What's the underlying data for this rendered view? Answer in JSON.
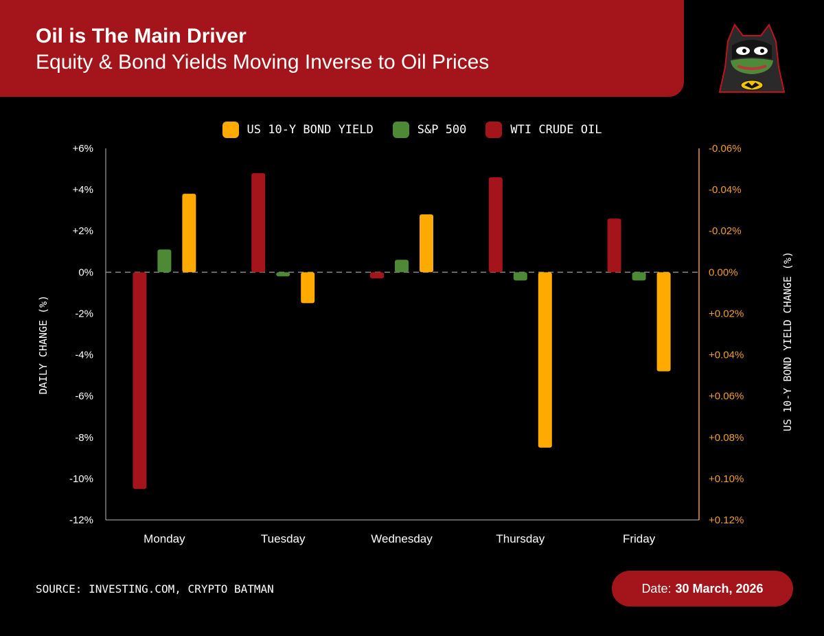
{
  "header": {
    "title": "Oil is The Main Driver",
    "subtitle": "Equity & Bond Yields Moving Inverse to Oil Prices"
  },
  "footer": {
    "source": "SOURCE: INVESTING.COM, CRYPTO BATMAN",
    "date_label": "Date:",
    "date_value": "30 March, 2026"
  },
  "colors": {
    "background": "#000000",
    "header": "#a3151a",
    "bond": "#ffaa00",
    "sp500": "#4e8a35",
    "oil": "#a3151a",
    "right_axis": "#f0a020"
  },
  "chart_data": {
    "type": "bar",
    "title": "Oil is The Main Driver",
    "subtitle": "Equity & Bond Yields Moving Inverse to Oil Prices",
    "categories": [
      "Monday",
      "Tuesday",
      "Wednesday",
      "Thursday",
      "Friday"
    ],
    "series": [
      {
        "name": "WTI CRUDE OIL",
        "axis": "left",
        "color": "#a3151a",
        "values": [
          -10.5,
          4.8,
          -0.3,
          4.6,
          2.6
        ]
      },
      {
        "name": "S&P 500",
        "axis": "left",
        "color": "#4e8a35",
        "values": [
          1.1,
          -0.2,
          0.6,
          -0.4,
          -0.4
        ]
      },
      {
        "name": "US 10-Y BOND YIELD",
        "axis": "right",
        "color": "#ffaa00",
        "values": [
          -0.038,
          0.015,
          -0.028,
          0.085,
          0.048
        ]
      }
    ],
    "legend": [
      "US 10-Y BOND YIELD",
      "S&P 500",
      "WTI CRUDE OIL"
    ],
    "ylabel": "DAILY CHANGE (%)",
    "ylabel_right": "US 10-Y BOND YIELD CHANGE (%)",
    "ylim": [
      -12,
      6
    ],
    "ylim_right": [
      0.12,
      -0.06
    ],
    "yticks": [
      "+6%",
      "+4%",
      "+2%",
      "0%",
      "-2%",
      "-4%",
      "-6%",
      "-8%",
      "-10%",
      "-12%"
    ],
    "yticks_right": [
      "-0.06%",
      "-0.04%",
      "-0.02%",
      "0.00%",
      "+0.02%",
      "+0.04%",
      "+0.06%",
      "+0.08%",
      "+0.10%",
      "+0.12%"
    ],
    "zero_line": "dashed"
  }
}
